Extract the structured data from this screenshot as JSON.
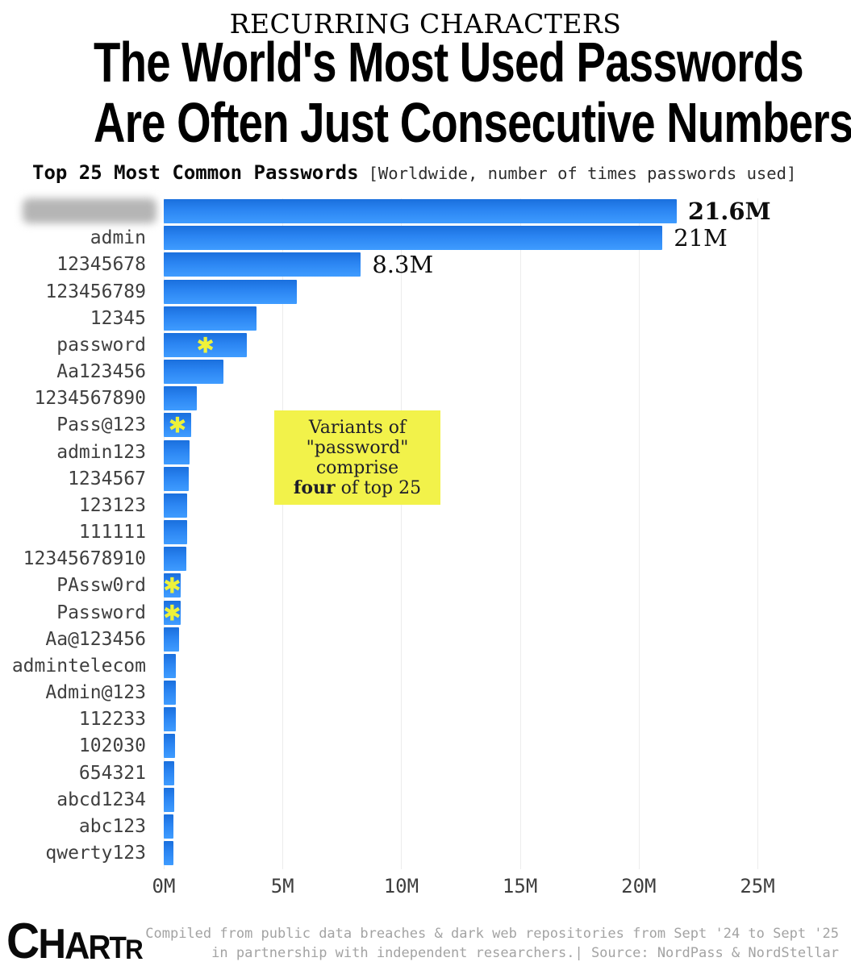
{
  "header": {
    "kicker": "RECURRING CHARACTERS",
    "title_line1": "The World's Most Used Passwords",
    "title_line2": "Are Often Just Consecutive Numbers",
    "subtitle_bold": "Top 25 Most Common Passwords",
    "subtitle_note": "[Worldwide, number of times passwords used]"
  },
  "chart_data": {
    "type": "bar",
    "orientation": "horizontal",
    "title": "Top 25 Most Common Passwords",
    "unit": "millions of times used",
    "xlim": [
      0,
      25
    ],
    "x_ticks": [
      "0M",
      "5M",
      "10M",
      "15M",
      "20M",
      "25M"
    ],
    "grid": true,
    "bar_color": "#2b85f2",
    "categories": [
      "",
      "admin",
      "12345678",
      "123456789",
      "12345",
      "password",
      "Aa123456",
      "1234567890",
      "Pass@123",
      "admin123",
      "1234567",
      "123123",
      "111111",
      "12345678910",
      "PAssw0rd",
      "Password",
      "Aa@123456",
      "admintelecom",
      "Admin@123",
      "112233",
      "102030",
      "654321",
      "abcd1234",
      "abc123",
      "qwerty123"
    ],
    "values": [
      21.6,
      21.0,
      8.3,
      5.6,
      3.9,
      3.5,
      2.5,
      1.4,
      1.15,
      1.1,
      1.05,
      1.0,
      1.0,
      0.95,
      0.7,
      0.7,
      0.65,
      0.5,
      0.5,
      0.5,
      0.47,
      0.45,
      0.45,
      0.4,
      0.4
    ],
    "details": {
      "first_label_blurred": true,
      "redacted_indices": [
        0
      ],
      "password_variant_indices": [
        5,
        8,
        14,
        15
      ],
      "asterisk_glyph": "✱",
      "asterisk_color": "#eef23a",
      "value_labels": [
        {
          "index": 0,
          "text": "21.6M",
          "bold": true
        },
        {
          "index": 1,
          "text": "21M",
          "bold": false
        },
        {
          "index": 2,
          "text": "8.3M",
          "bold": false
        }
      ]
    },
    "annotation": {
      "line1": "Variants of",
      "line2": "\"password\"",
      "line3": "comprise",
      "line4_bold": "four",
      "line4_rest": " of top 25",
      "bg_color": "#f2f24a"
    }
  },
  "footer": {
    "logo": "CHARTR",
    "credit_line1": "Compiled from public data breaches & dark web repositories from Sept '24 to Sept '25",
    "credit_line2": "in partnership with independent researchers.| Source: NordPass & NordStellar"
  }
}
